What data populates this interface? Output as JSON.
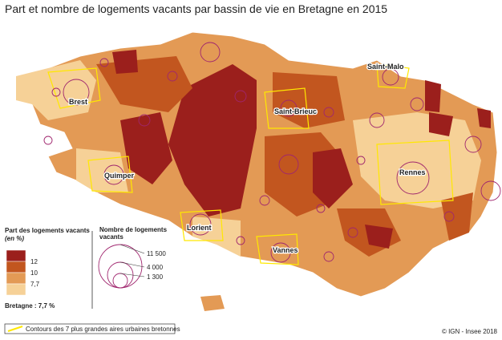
{
  "header": {
    "title": "Part et nombre de logements vacants par bassin de vie en Bretagne en 2015"
  },
  "cities": [
    "Brest",
    "Saint-Malo",
    "Saint-Brieuc",
    "Quimper",
    "Rennes",
    "Lorient",
    "Vannes"
  ],
  "legend_share": {
    "title": "Part des logements vacants",
    "unit": "(en %)",
    "breaks": [
      "12",
      "10",
      "7,7"
    ],
    "colors": [
      "#9b1f1c",
      "#c2561f",
      "#e39a55",
      "#f6d197"
    ]
  },
  "legend_count": {
    "title": "Nombre de logements vacants",
    "sizes": [
      "11 500",
      "4 000",
      "1 300"
    ]
  },
  "note": "Bretagne :  7,7 %",
  "contour_legend": "Contours des 7 plus grandes aires urbaines bretonnes",
  "credit": "© IGN - Insee 2018"
}
